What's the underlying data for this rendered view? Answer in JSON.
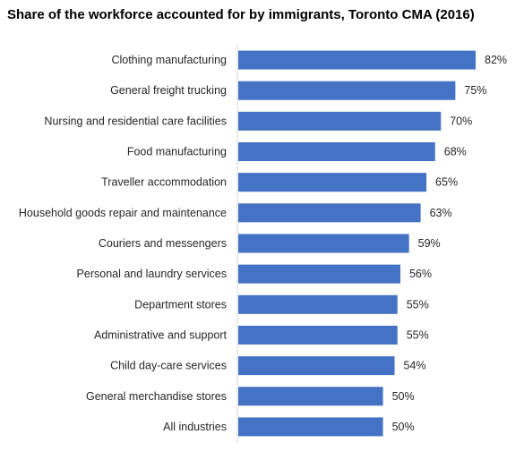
{
  "chart_data": {
    "type": "bar",
    "orientation": "horizontal",
    "title": "Share of the workforce accounted for by immigrants, Toronto CMA (2016)",
    "xlabel": "",
    "ylabel": "",
    "categories": [
      "Clothing manufacturing",
      "General freight trucking",
      "Nursing and residential care facilities",
      "Food manufacturing",
      "Traveller accommodation",
      "Household goods repair and maintenance",
      "Couriers and messengers",
      "Personal and laundry services",
      "Department stores",
      "Administrative and support",
      "Child day-care services",
      "General merchandise stores",
      "All industries"
    ],
    "values": [
      82,
      75,
      70,
      68,
      65,
      63,
      59,
      56,
      55,
      55,
      54,
      50,
      50
    ],
    "value_labels": [
      "82%",
      "75%",
      "70%",
      "68%",
      "65%",
      "63%",
      "59%",
      "56%",
      "55%",
      "55%",
      "54%",
      "50%",
      "50%"
    ],
    "unit": "%",
    "xlim": [
      0,
      82
    ],
    "bar_color": "#4472c4",
    "axis_color": "#d9d9d9",
    "grid": false,
    "legend": "none"
  }
}
